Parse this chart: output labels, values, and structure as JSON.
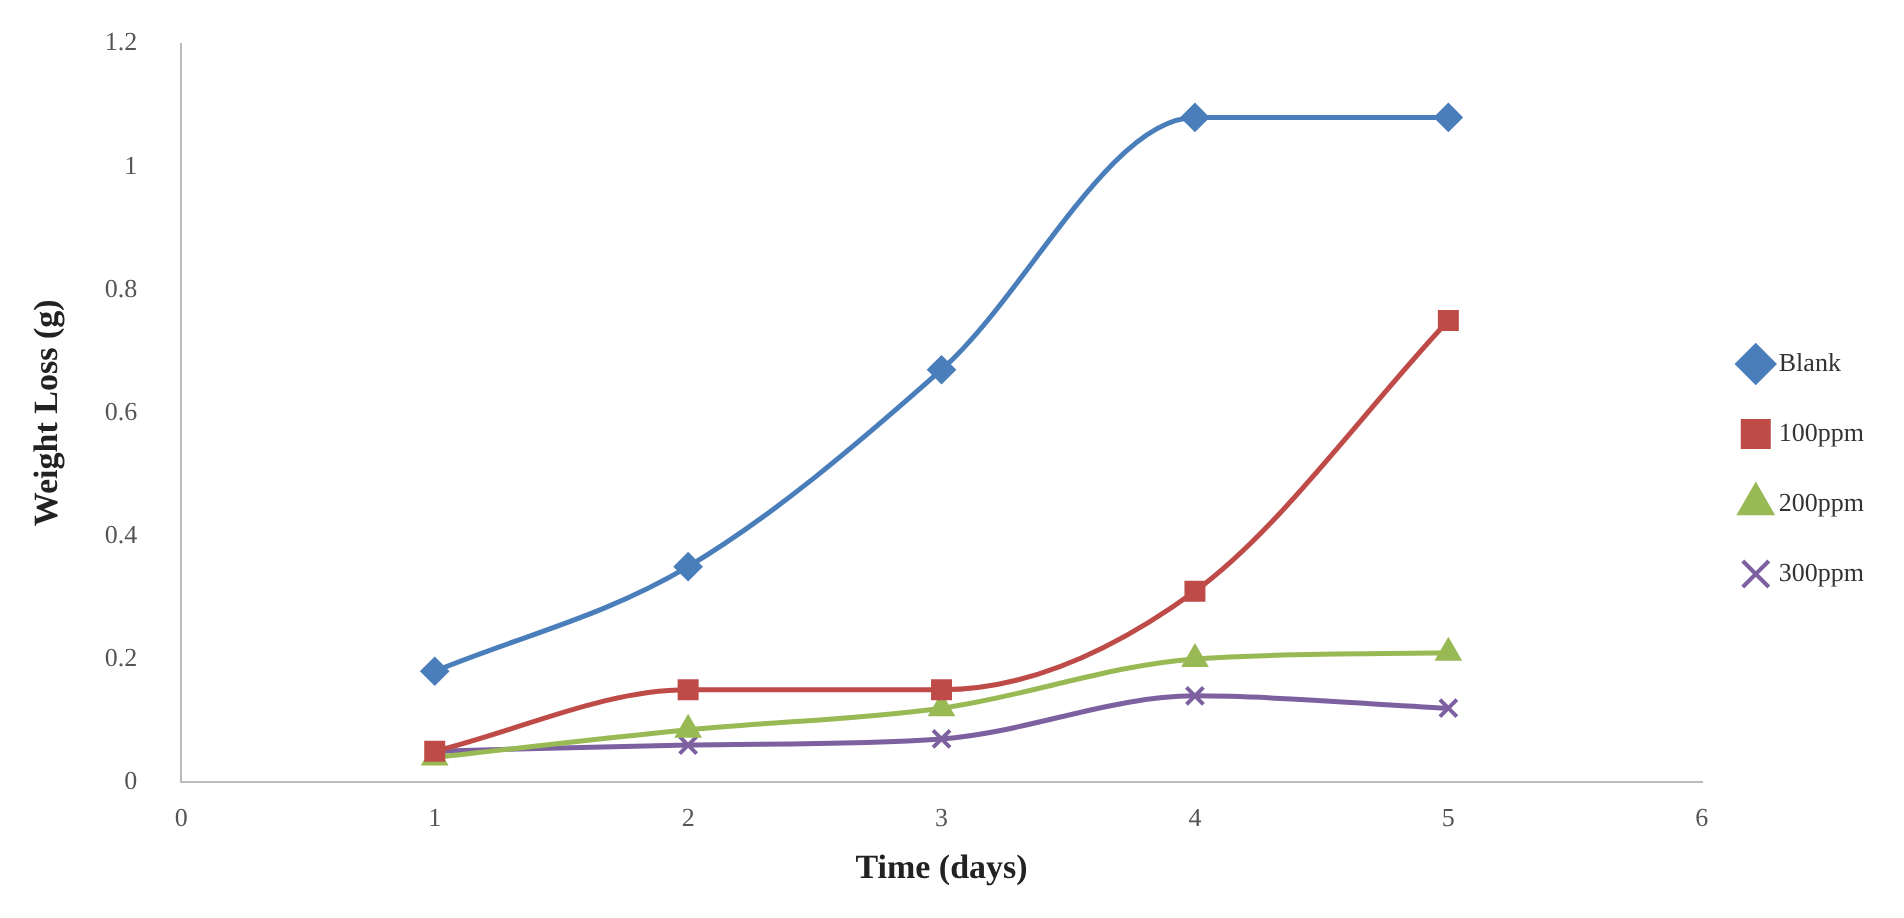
{
  "chart_data": {
    "type": "line",
    "xlabel": "Time (days)",
    "ylabel": "Weight Loss (g)",
    "x": [
      1,
      2,
      3,
      4,
      5
    ],
    "xlim": [
      0,
      6
    ],
    "xticks": [
      0,
      1,
      2,
      3,
      4,
      5,
      6
    ],
    "ylim": [
      0,
      1.2
    ],
    "yticks": [
      0,
      0.2,
      0.4,
      0.6,
      0.8,
      1,
      {
        "value": 1.2,
        "label": "1.2"
      }
    ],
    "grid": false,
    "legend": "right",
    "series": [
      {
        "name": "Blank",
        "color": "#4a7ebb",
        "marker": "diamond",
        "values": [
          0.18,
          0.35,
          0.67,
          1.08,
          1.08
        ]
      },
      {
        "name": "100ppm",
        "color": "#be4b48",
        "marker": "square",
        "values": [
          0.05,
          0.15,
          0.15,
          0.31,
          0.75
        ]
      },
      {
        "name": "200ppm",
        "color": "#98b954",
        "marker": "triangle",
        "values": [
          0.04,
          0.085,
          0.12,
          0.2,
          0.21
        ]
      },
      {
        "name": "300ppm",
        "color": "#7d60a0",
        "marker": "cross",
        "values": [
          0.05,
          0.06,
          0.07,
          0.14,
          0.12
        ]
      }
    ]
  }
}
